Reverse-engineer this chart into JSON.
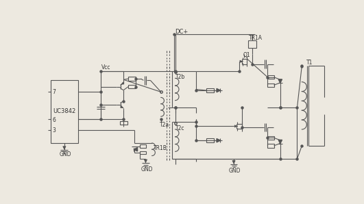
{
  "bg_color": "#ede9e0",
  "line_color": "#555555",
  "line_width": 0.8,
  "text_color": "#333333",
  "font_size": 5.5,
  "labels": {
    "uc3842": "UC3842",
    "pin7": "7",
    "pin6": "6",
    "pin3": "3",
    "vcc": "Vcc",
    "dc_plus": "DC+",
    "gnd1": "GND",
    "gnd2": "GND",
    "gnd3": "GND",
    "tr1a": "TR1A",
    "tr1b": "TR1B",
    "t2a": "T2a",
    "t2b": "T2b",
    "t2c": "T2c",
    "t1": "T1",
    "q1": "Q1"
  }
}
